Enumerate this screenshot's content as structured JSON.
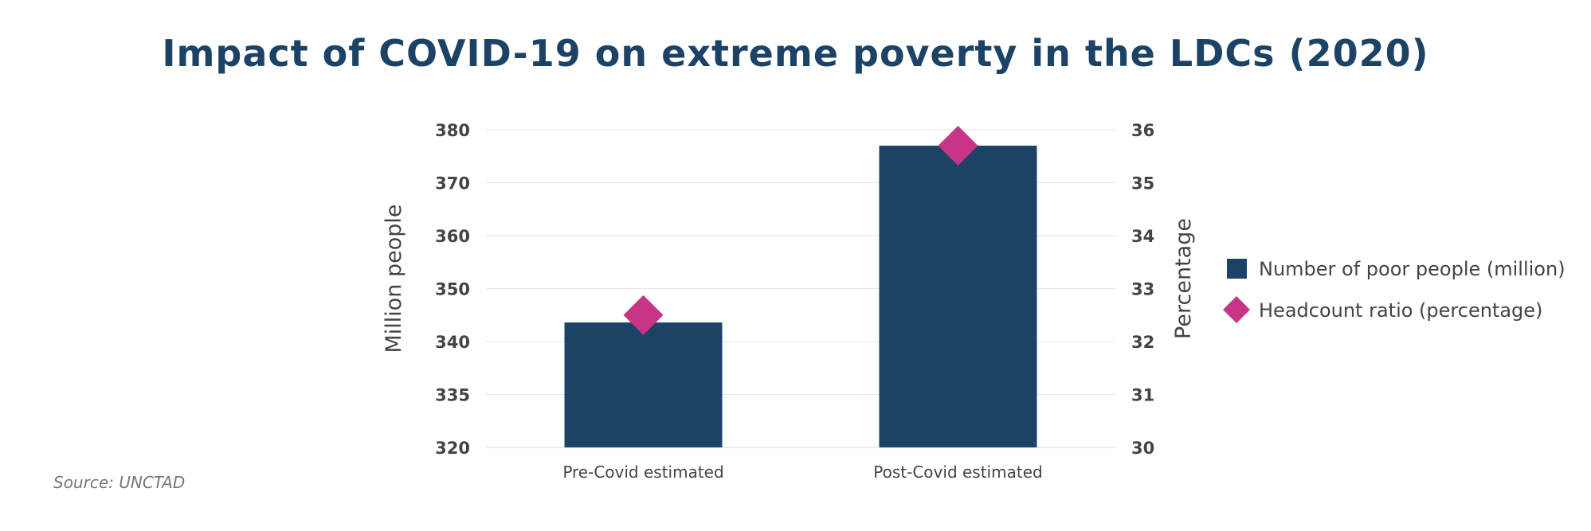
{
  "title": "Impact of COVID-19 on extreme poverty in the LDCs (2020)",
  "source": "Source: UNCTAD",
  "colors": {
    "bar": "#1c4366",
    "marker": "#c93586",
    "title": "#1c4366",
    "grid": "#e6e6e6",
    "text": "#444444"
  },
  "chart_data": {
    "type": "bar",
    "categories": [
      "Pre-Covid estimated",
      "Post-Covid estimated"
    ],
    "series": [
      {
        "name": "Number of poor people (million)",
        "type": "bar",
        "axis": "left",
        "values": [
          343.6,
          377.0
        ]
      },
      {
        "name": "Headcount ratio (percentage)",
        "type": "scatter",
        "marker": "diamond",
        "axis": "right",
        "values": [
          32.5,
          35.7
        ]
      }
    ],
    "left_axis": {
      "label": "Million people",
      "ticks": [
        320,
        335,
        340,
        350,
        360,
        370,
        380
      ],
      "note": "broken axis between 320 and 335"
    },
    "right_axis": {
      "label": "Percentage",
      "ticks": [
        30,
        31,
        32,
        33,
        34,
        35,
        36
      ],
      "ylim": [
        30,
        36
      ]
    },
    "grid": true,
    "legend_position": "right"
  }
}
